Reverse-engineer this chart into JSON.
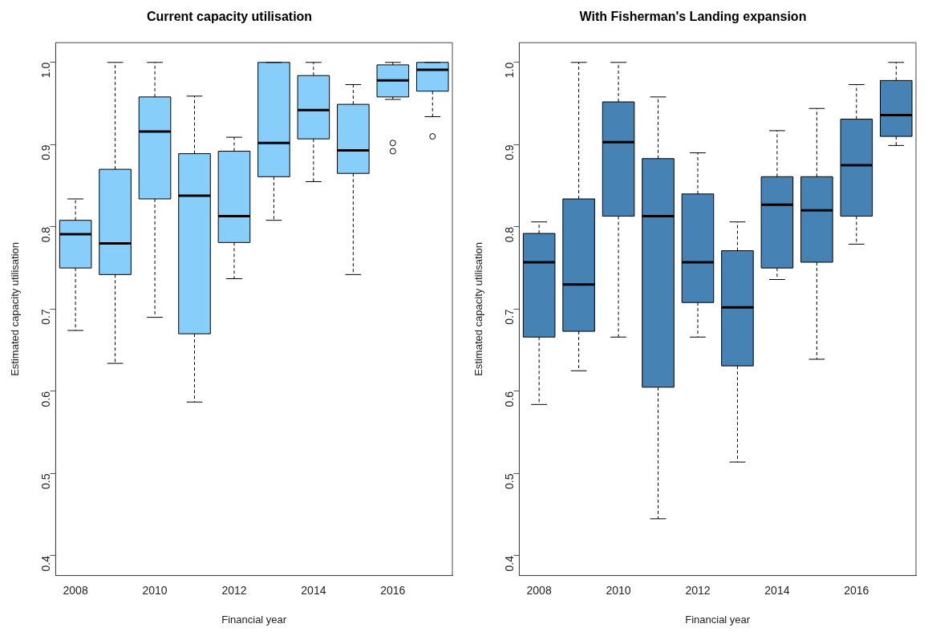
{
  "chart_data": [
    {
      "type": "box",
      "title": "Current capacity utilisation",
      "xlabel": "Financial year",
      "ylabel": "Estimated capacity utilisation",
      "categories": [
        "2008",
        null,
        "2010",
        null,
        "2012",
        null,
        "2014",
        null,
        "2016",
        null
      ],
      "ylim": [
        0.376,
        1.024
      ],
      "yticks": [
        0.4,
        0.5,
        0.6,
        0.7,
        0.8,
        0.9,
        {
          "value": 1,
          "label": "1.0"
        }
      ],
      "series": [
        {
          "color": "#87cefa",
          "boxes": [
            {
              "low": 0.674,
              "q1": 0.75,
              "median": 0.791,
              "q3": 0.808,
              "high": 0.834
            },
            {
              "low": 0.634,
              "q1": 0.742,
              "median": 0.78,
              "q3": 0.87,
              "high": 1.0
            },
            {
              "low": 0.69,
              "q1": 0.834,
              "median": 0.916,
              "q3": 0.958,
              "high": 1.0
            },
            {
              "low": 0.587,
              "q1": 0.67,
              "median": 0.838,
              "q3": 0.889,
              "high": 0.959
            },
            {
              "low": 0.737,
              "q1": 0.781,
              "median": 0.813,
              "q3": 0.892,
              "high": 0.909
            },
            {
              "low": 0.808,
              "q1": 0.861,
              "median": 0.902,
              "q3": 1.0,
              "high": 1.0
            },
            {
              "low": 0.855,
              "q1": 0.907,
              "median": 0.942,
              "q3": 0.984,
              "high": 1.0
            },
            {
              "low": 0.742,
              "q1": 0.865,
              "median": 0.893,
              "q3": 0.949,
              "high": 0.973
            },
            {
              "low": 0.955,
              "q1": 0.958,
              "median": 0.978,
              "q3": 0.997,
              "high": 1.0,
              "outliers": [
                0.902,
                0.892
              ]
            },
            {
              "low": 0.934,
              "q1": 0.965,
              "median": 0.991,
              "q3": 1.0,
              "high": 1.0,
              "outliers": [
                0.91
              ]
            }
          ]
        }
      ]
    },
    {
      "type": "box",
      "title": "With Fisherman's Landing expansion",
      "xlabel": "Financial year",
      "ylabel": "Estimated capacity utilisation",
      "categories": [
        "2008",
        null,
        "2010",
        null,
        "2012",
        null,
        "2014",
        null,
        "2016",
        null
      ],
      "ylim": [
        0.376,
        1.024
      ],
      "yticks": [
        0.4,
        0.5,
        0.6,
        0.7,
        0.8,
        0.9,
        {
          "value": 1,
          "label": "1.0"
        }
      ],
      "series": [
        {
          "color": "#4682b4",
          "boxes": [
            {
              "low": 0.584,
              "q1": 0.666,
              "median": 0.757,
              "q3": 0.792,
              "high": 0.806
            },
            {
              "low": 0.625,
              "q1": 0.673,
              "median": 0.73,
              "q3": 0.834,
              "high": 1.0
            },
            {
              "low": 0.666,
              "q1": 0.813,
              "median": 0.903,
              "q3": 0.952,
              "high": 1.0
            },
            {
              "low": 0.445,
              "q1": 0.605,
              "median": 0.813,
              "q3": 0.883,
              "high": 0.958
            },
            {
              "low": 0.666,
              "q1": 0.708,
              "median": 0.757,
              "q3": 0.84,
              "high": 0.89
            },
            {
              "low": 0.514,
              "q1": 0.631,
              "median": 0.702,
              "q3": 0.771,
              "high": 0.806
            },
            {
              "low": 0.736,
              "q1": 0.75,
              "median": 0.827,
              "q3": 0.861,
              "high": 0.917
            },
            {
              "low": 0.639,
              "q1": 0.757,
              "median": 0.82,
              "q3": 0.861,
              "high": 0.944
            },
            {
              "low": 0.779,
              "q1": 0.813,
              "median": 0.875,
              "q3": 0.931,
              "high": 0.973
            },
            {
              "low": 0.899,
              "q1": 0.91,
              "median": 0.936,
              "q3": 0.978,
              "high": 1.0
            }
          ]
        }
      ]
    }
  ]
}
